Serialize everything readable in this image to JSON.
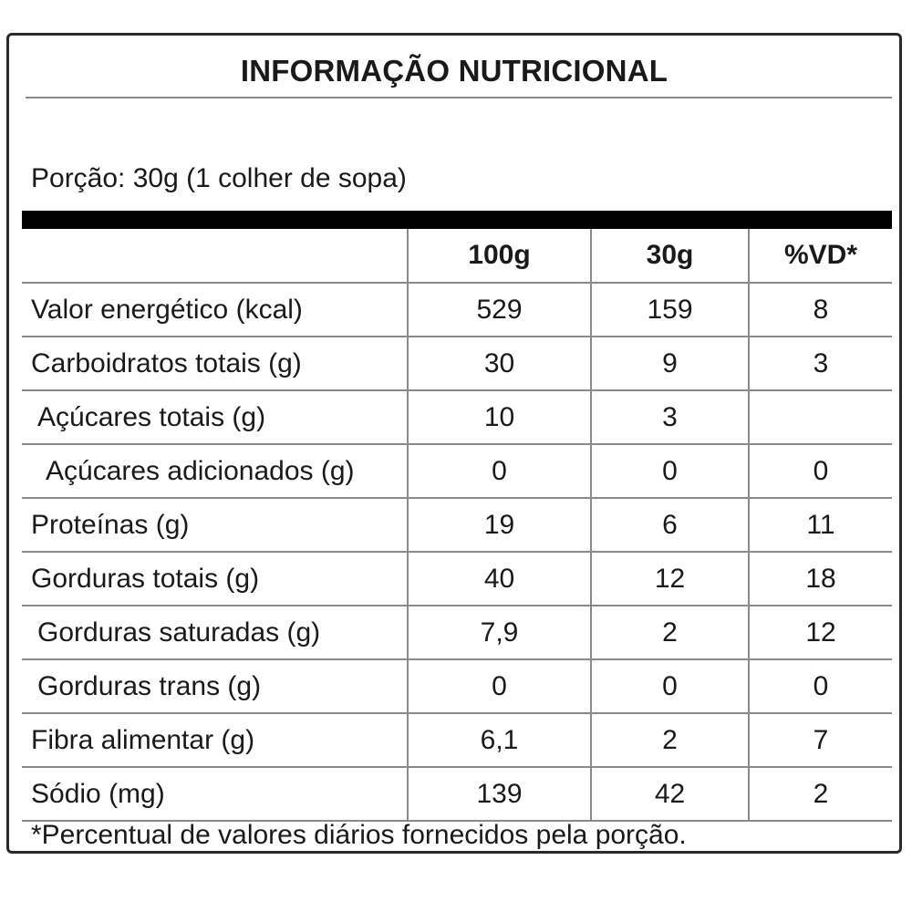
{
  "title": "INFORMAÇÃO NUTRICIONAL",
  "portion": "Porção: 30g (1 colher de sopa)",
  "headers": [
    "",
    "100g",
    "30g",
    "%VD*"
  ],
  "rows": [
    {
      "name": "Valor energético (kcal)",
      "per100": "529",
      "per30": "159",
      "vd": "8",
      "indent": 0
    },
    {
      "name": "Carboidratos totais (g)",
      "per100": "30",
      "per30": "9",
      "vd": "3",
      "indent": 0
    },
    {
      "name": "Açúcares totais (g)",
      "per100": "10",
      "per30": "3",
      "vd": "",
      "indent": 1
    },
    {
      "name": "Açúcares adicionados (g)",
      "per100": "0",
      "per30": "0",
      "vd": "0",
      "indent": 2
    },
    {
      "name": "Proteínas (g)",
      "per100": "19",
      "per30": "6",
      "vd": "11",
      "indent": 0
    },
    {
      "name": "Gorduras totais (g)",
      "per100": "40",
      "per30": "12",
      "vd": "18",
      "indent": 0
    },
    {
      "name": "Gorduras saturadas (g)",
      "per100": "7,9",
      "per30": "2",
      "vd": "12",
      "indent": 1
    },
    {
      "name": "Gorduras trans (g)",
      "per100": "0",
      "per30": "0",
      "vd": "0",
      "indent": 1
    },
    {
      "name": "Fibra alimentar (g)",
      "per100": "6,1",
      "per30": "2",
      "vd": "7",
      "indent": 0
    },
    {
      "name": "Sódio (mg)",
      "per100": "139",
      "per30": "42",
      "vd": "2",
      "indent": 0
    }
  ],
  "footnote": "*Percentual de valores diários fornecidos pela porção.",
  "colors": {
    "border": "#2a2a2a",
    "rule": "#8a8a8a",
    "bar": "#000000",
    "text": "#1a1a1a"
  }
}
